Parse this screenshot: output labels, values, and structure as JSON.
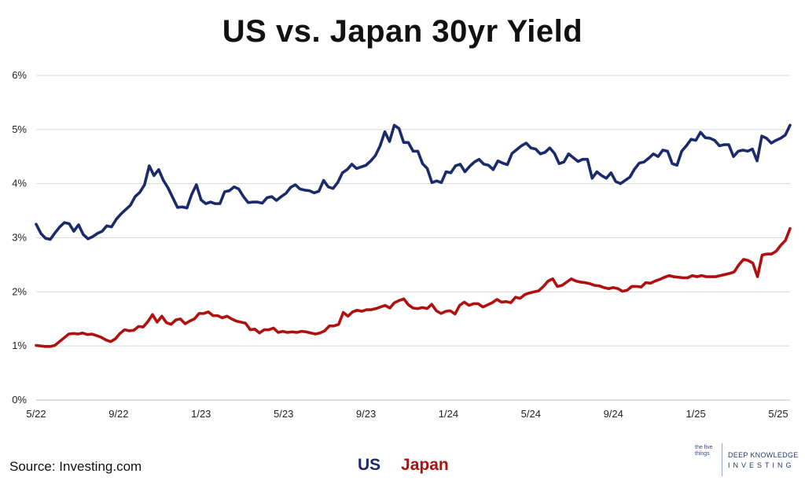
{
  "chart_data": {
    "type": "line",
    "title": "US vs. Japan 30yr Yield",
    "xlabel": "",
    "ylabel": "",
    "ylim": [
      0,
      6
    ],
    "y_ticks": [
      "0%",
      "1%",
      "2%",
      "3%",
      "4%",
      "5%",
      "6%"
    ],
    "x_ticks": [
      "5/22",
      "9/22",
      "1/23",
      "5/23",
      "9/23",
      "1/24",
      "5/24",
      "9/24",
      "1/25",
      "5/25"
    ],
    "grid": true,
    "legend": "bottom-center",
    "series": [
      {
        "name": "US",
        "color": "#1b2a6b",
        "values": [
          3.25,
          3.08,
          2.99,
          2.97,
          3.09,
          3.2,
          3.28,
          3.26,
          3.12,
          3.24,
          3.06,
          2.98,
          3.02,
          3.08,
          3.12,
          3.22,
          3.2,
          3.34,
          3.44,
          3.52,
          3.6,
          3.76,
          3.84,
          3.98,
          4.33,
          4.15,
          4.26,
          4.06,
          3.92,
          3.74,
          3.56,
          3.57,
          3.55,
          3.8,
          3.98,
          3.7,
          3.63,
          3.66,
          3.63,
          3.63,
          3.85,
          3.87,
          3.94,
          3.9,
          3.76,
          3.65,
          3.66,
          3.66,
          3.64,
          3.74,
          3.76,
          3.69,
          3.76,
          3.82,
          3.93,
          3.98,
          3.9,
          3.88,
          3.87,
          3.83,
          3.86,
          4.06,
          3.94,
          3.91,
          4.02,
          4.2,
          4.26,
          4.36,
          4.28,
          4.31,
          4.34,
          4.42,
          4.52,
          4.7,
          4.96,
          4.78,
          5.08,
          5.02,
          4.76,
          4.76,
          4.6,
          4.6,
          4.37,
          4.28,
          4.02,
          4.05,
          4.02,
          4.22,
          4.2,
          4.33,
          4.36,
          4.22,
          4.32,
          4.4,
          4.45,
          4.36,
          4.34,
          4.26,
          4.42,
          4.38,
          4.35,
          4.56,
          4.63,
          4.7,
          4.75,
          4.66,
          4.64,
          4.55,
          4.58,
          4.66,
          4.56,
          4.37,
          4.4,
          4.55,
          4.48,
          4.41,
          4.45,
          4.45,
          4.1,
          4.22,
          4.15,
          4.1,
          4.2,
          4.04,
          4.0,
          4.06,
          4.12,
          4.27,
          4.38,
          4.4,
          4.47,
          4.55,
          4.5,
          4.62,
          4.6,
          4.37,
          4.34,
          4.6,
          4.7,
          4.82,
          4.8,
          4.95,
          4.85,
          4.84,
          4.8,
          4.7,
          4.72,
          4.72,
          4.5,
          4.6,
          4.62,
          4.6,
          4.64,
          4.42,
          4.88,
          4.84,
          4.75,
          4.8,
          4.84,
          4.9,
          5.08
        ]
      },
      {
        "name": "Japan",
        "color": "#b01010",
        "values": [
          1.01,
          1.0,
          0.99,
          0.99,
          1.01,
          1.08,
          1.15,
          1.22,
          1.23,
          1.22,
          1.24,
          1.21,
          1.22,
          1.19,
          1.16,
          1.11,
          1.08,
          1.13,
          1.23,
          1.3,
          1.28,
          1.29,
          1.36,
          1.35,
          1.45,
          1.58,
          1.44,
          1.55,
          1.43,
          1.4,
          1.48,
          1.5,
          1.41,
          1.46,
          1.5,
          1.6,
          1.6,
          1.63,
          1.56,
          1.56,
          1.52,
          1.55,
          1.5,
          1.46,
          1.44,
          1.42,
          1.3,
          1.31,
          1.24,
          1.3,
          1.3,
          1.33,
          1.25,
          1.27,
          1.25,
          1.26,
          1.25,
          1.27,
          1.26,
          1.24,
          1.22,
          1.24,
          1.28,
          1.37,
          1.37,
          1.4,
          1.62,
          1.55,
          1.63,
          1.66,
          1.64,
          1.67,
          1.67,
          1.69,
          1.72,
          1.75,
          1.7,
          1.8,
          1.84,
          1.87,
          1.76,
          1.7,
          1.69,
          1.71,
          1.69,
          1.77,
          1.65,
          1.6,
          1.64,
          1.65,
          1.59,
          1.75,
          1.81,
          1.75,
          1.78,
          1.78,
          1.72,
          1.76,
          1.8,
          1.86,
          1.81,
          1.82,
          1.8,
          1.9,
          1.88,
          1.95,
          1.98,
          2.0,
          2.02,
          2.1,
          2.2,
          2.24,
          2.1,
          2.12,
          2.18,
          2.24,
          2.2,
          2.18,
          2.17,
          2.15,
          2.12,
          2.11,
          2.08,
          2.06,
          2.08,
          2.06,
          2.01,
          2.03,
          2.1,
          2.1,
          2.09,
          2.17,
          2.16,
          2.2,
          2.23,
          2.27,
          2.3,
          2.28,
          2.27,
          2.26,
          2.26,
          2.3,
          2.28,
          2.3,
          2.28,
          2.28,
          2.28,
          2.3,
          2.32,
          2.34,
          2.37,
          2.5,
          2.6,
          2.58,
          2.53,
          2.28,
          2.68,
          2.7,
          2.7,
          2.75,
          2.86,
          2.95,
          3.17
        ]
      }
    ]
  },
  "source_note": "Source: Investing.com",
  "legend_items": [
    {
      "label": "US",
      "color": "#1b2a6b"
    },
    {
      "label": "Japan",
      "color": "#b01010"
    }
  ],
  "logo": {
    "mark_text": "the five things",
    "line1": "DEEP KNOWLEDGE",
    "line2": "INVESTING"
  }
}
